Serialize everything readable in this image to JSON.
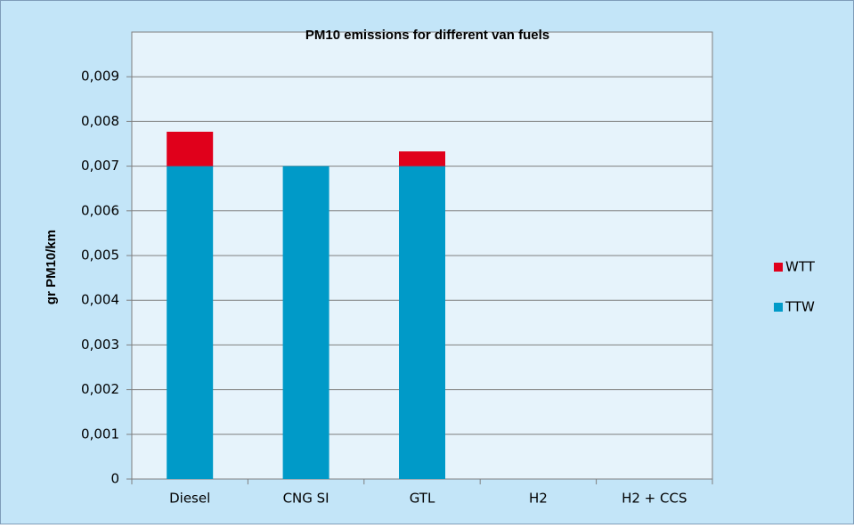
{
  "chart_data": {
    "type": "bar",
    "stacked": true,
    "title": "PM10 emissions for  different van fuels",
    "y_label": "gr PM10/km",
    "categories": [
      "Diesel",
      "CNG SI",
      "GTL",
      "H2",
      "H2 + CCS"
    ],
    "series": [
      {
        "name": "TTW",
        "color": "#009ac8",
        "values": [
          0.007,
          0.007,
          0.007,
          0,
          0
        ]
      },
      {
        "name": "WTT",
        "color": "#e0001b",
        "values": [
          0.00077,
          0,
          0.00033,
          0,
          0
        ]
      }
    ],
    "ylim": [
      0,
      0.01
    ],
    "yticks": [
      0,
      {
        "value": 0.001,
        "label": "0,001"
      },
      {
        "value": 0.002,
        "label": "0,002"
      },
      {
        "value": 0.003,
        "label": "0,003"
      },
      {
        "value": 0.004,
        "label": "0,004"
      },
      {
        "value": 0.005,
        "label": "0,005"
      },
      {
        "value": 0.006,
        "label": "0,006"
      },
      {
        "value": 0.007,
        "label": "0,007"
      },
      {
        "value": 0.008,
        "label": "0,008"
      },
      {
        "value": 0.009,
        "label": "0,009"
      }
    ],
    "grid": true,
    "legend": "right"
  }
}
